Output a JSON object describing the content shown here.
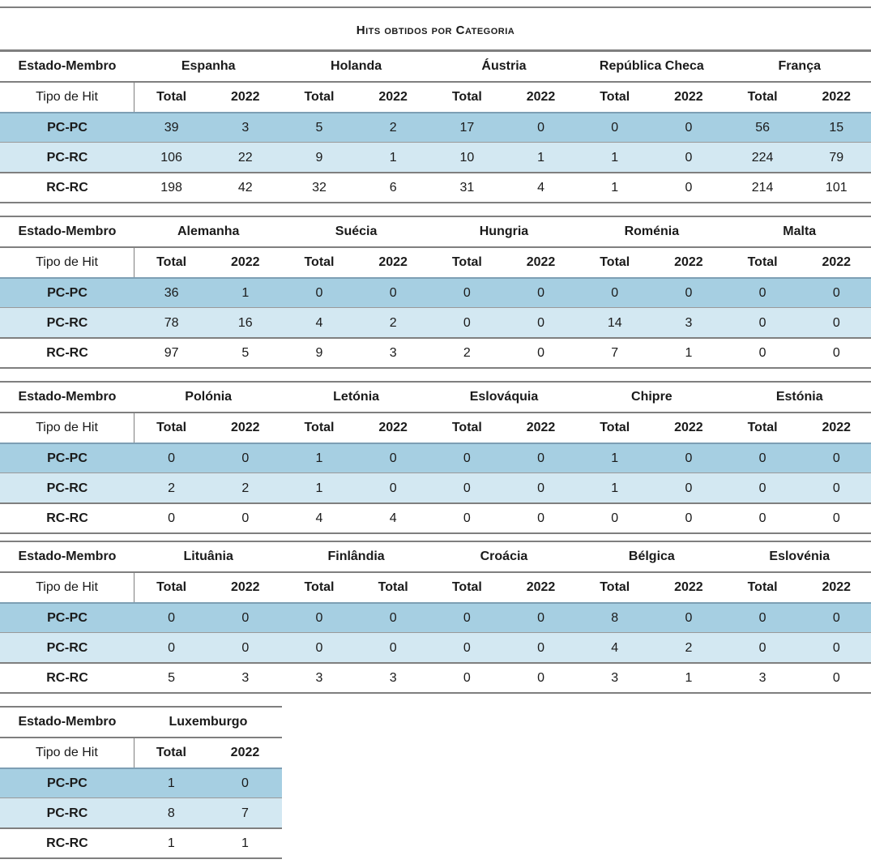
{
  "title": "Hits obtidos por Categoria",
  "labels": {
    "estado_membro": "Estado-Membro",
    "tipo_de_hit": "Tipo de Hit",
    "row_labels": [
      "PC-PC",
      "PC-RC",
      "RC-RC"
    ]
  },
  "blocks": [
    {
      "countries": [
        {
          "name": "Espanha",
          "headers": [
            "Total",
            "2022"
          ],
          "values": [
            [
              "39",
              "3"
            ],
            [
              "106",
              "22"
            ],
            [
              "198",
              "42"
            ]
          ]
        },
        {
          "name": "Holanda",
          "headers": [
            "Total",
            "2022"
          ],
          "values": [
            [
              "5",
              "2"
            ],
            [
              "9",
              "1"
            ],
            [
              "32",
              "6"
            ]
          ]
        },
        {
          "name": "Áustria",
          "headers": [
            "Total",
            "2022"
          ],
          "values": [
            [
              "17",
              "0"
            ],
            [
              "10",
              "1"
            ],
            [
              "31",
              "4"
            ]
          ]
        },
        {
          "name": "República Checa",
          "headers": [
            "Total",
            "2022"
          ],
          "values": [
            [
              "0",
              "0"
            ],
            [
              "1",
              "0"
            ],
            [
              "1",
              "0"
            ]
          ]
        },
        {
          "name": "França",
          "headers": [
            "Total",
            "2022"
          ],
          "values": [
            [
              "56",
              "15"
            ],
            [
              "224",
              "79"
            ],
            [
              "214",
              "101"
            ]
          ]
        }
      ]
    },
    {
      "countries": [
        {
          "name": "Alemanha",
          "headers": [
            "Total",
            "2022"
          ],
          "values": [
            [
              "36",
              "1"
            ],
            [
              "78",
              "16"
            ],
            [
              "97",
              "5"
            ]
          ]
        },
        {
          "name": "Suécia",
          "headers": [
            "Total",
            "2022"
          ],
          "values": [
            [
              "0",
              "0"
            ],
            [
              "4",
              "2"
            ],
            [
              "9",
              "3"
            ]
          ]
        },
        {
          "name": "Hungria",
          "headers": [
            "Total",
            "2022"
          ],
          "values": [
            [
              "0",
              "0"
            ],
            [
              "0",
              "0"
            ],
            [
              "2",
              "0"
            ]
          ]
        },
        {
          "name": "Roménia",
          "headers": [
            "Total",
            "2022"
          ],
          "values": [
            [
              "0",
              "0"
            ],
            [
              "14",
              "3"
            ],
            [
              "7",
              "1"
            ]
          ]
        },
        {
          "name": "Malta",
          "headers": [
            "Total",
            "2022"
          ],
          "values": [
            [
              "0",
              "0"
            ],
            [
              "0",
              "0"
            ],
            [
              "0",
              "0"
            ]
          ]
        }
      ]
    },
    {
      "countries": [
        {
          "name": "Polónia",
          "headers": [
            "Total",
            "2022"
          ],
          "values": [
            [
              "0",
              "0"
            ],
            [
              "2",
              "2"
            ],
            [
              "0",
              "0"
            ]
          ]
        },
        {
          "name": "Letónia",
          "headers": [
            "Total",
            "2022"
          ],
          "values": [
            [
              "1",
              "0"
            ],
            [
              "1",
              "0"
            ],
            [
              "4",
              "4"
            ]
          ]
        },
        {
          "name": "Eslováquia",
          "headers": [
            "Total",
            "2022"
          ],
          "values": [
            [
              "0",
              "0"
            ],
            [
              "0",
              "0"
            ],
            [
              "0",
              "0"
            ]
          ]
        },
        {
          "name": "Chipre",
          "headers": [
            "Total",
            "2022"
          ],
          "values": [
            [
              "1",
              "0"
            ],
            [
              "1",
              "0"
            ],
            [
              "0",
              "0"
            ]
          ]
        },
        {
          "name": "Estónia",
          "headers": [
            "Total",
            "2022"
          ],
          "values": [
            [
              "0",
              "0"
            ],
            [
              "0",
              "0"
            ],
            [
              "0",
              "0"
            ]
          ]
        }
      ]
    },
    {
      "countries": [
        {
          "name": "Lituânia",
          "headers": [
            "Total",
            "2022"
          ],
          "values": [
            [
              "0",
              "0"
            ],
            [
              "0",
              "0"
            ],
            [
              "5",
              "3"
            ]
          ]
        },
        {
          "name": "Finlândia",
          "headers": [
            "Total",
            "Total"
          ],
          "values": [
            [
              "0",
              "0"
            ],
            [
              "0",
              "0"
            ],
            [
              "3",
              "3"
            ]
          ]
        },
        {
          "name": "Croácia",
          "headers": [
            "Total",
            "2022"
          ],
          "values": [
            [
              "0",
              "0"
            ],
            [
              "0",
              "0"
            ],
            [
              "0",
              "0"
            ]
          ]
        },
        {
          "name": "Bélgica",
          "headers": [
            "Total",
            "2022"
          ],
          "values": [
            [
              "8",
              "0"
            ],
            [
              "4",
              "2"
            ],
            [
              "3",
              "1"
            ]
          ]
        },
        {
          "name": "Eslovénia",
          "headers": [
            "Total",
            "2022"
          ],
          "values": [
            [
              "0",
              "0"
            ],
            [
              "0",
              "0"
            ],
            [
              "3",
              "0"
            ]
          ]
        }
      ]
    },
    {
      "countries": [
        {
          "name": "Luxemburgo",
          "headers": [
            "Total",
            "2022"
          ],
          "values": [
            [
              "1",
              "0"
            ],
            [
              "8",
              "7"
            ],
            [
              "1",
              "1"
            ]
          ]
        }
      ]
    }
  ]
}
